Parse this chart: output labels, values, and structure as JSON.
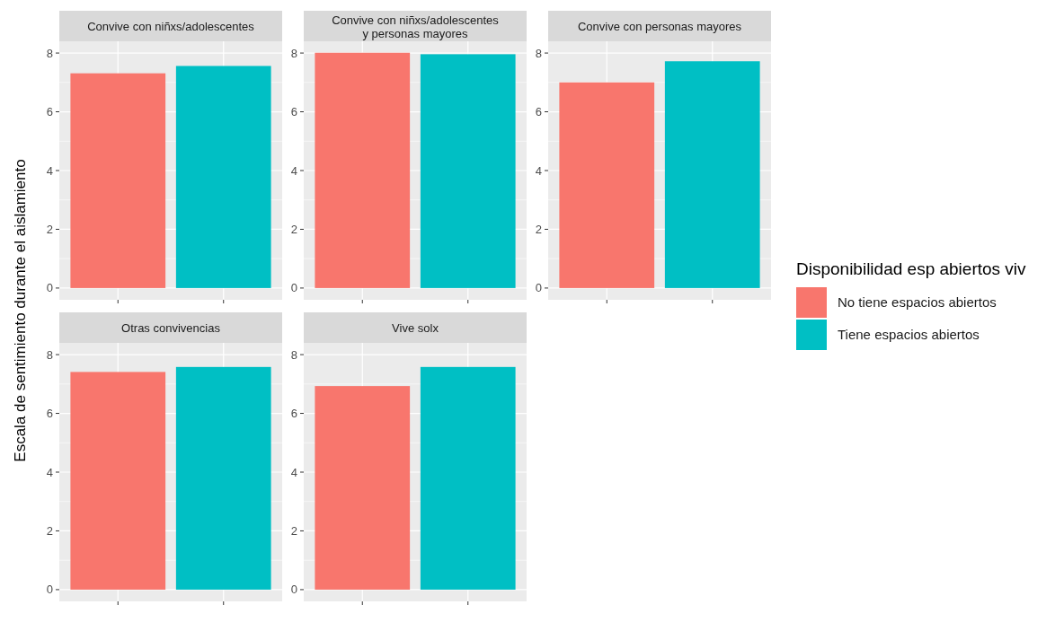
{
  "chart_data": [
    {
      "type": "bar",
      "title": "Convive con niñxs/adolescentes",
      "ylabel": "Escala de sentimiento durante el aislamiento",
      "legend_title": "Disponibilidad esp abiertos viv",
      "legend": "right",
      "categories": [
        null
      ],
      "ylim": [
        -0.4,
        8.4
      ],
      "yticks": [
        0,
        2,
        4,
        6,
        8
      ],
      "grid": true,
      "series": [
        {
          "name": "No tiene espacios abiertos",
          "color": "#f8766d",
          "values": [
            7.31
          ]
        },
        {
          "name": "Tiene espacios abiertos",
          "color": "#00bfc4",
          "values": [
            7.56
          ]
        }
      ]
    },
    {
      "type": "bar",
      "title": "Convive con niñxs/adolescentes y personas mayores",
      "categories": [
        null
      ],
      "ylim": [
        -0.4,
        8.4
      ],
      "yticks": [
        0,
        2,
        4,
        6,
        8
      ],
      "grid": true,
      "series": [
        {
          "color": "#f8766d",
          "values": [
            8.01
          ]
        },
        {
          "color": "#00bfc4",
          "values": [
            7.96
          ]
        }
      ]
    },
    {
      "type": "bar",
      "title": "Convive con personas mayores",
      "categories": [
        null
      ],
      "ylim": [
        -0.4,
        8.4
      ],
      "yticks": [
        0,
        2,
        4,
        6,
        8
      ],
      "grid": true,
      "series": [
        {
          "color": "#f8766d",
          "values": [
            7.0
          ]
        },
        {
          "color": "#00bfc4",
          "values": [
            7.72
          ]
        }
      ]
    },
    {
      "type": "bar",
      "title": "Otras convivencias",
      "categories": [
        null
      ],
      "ylim": [
        -0.4,
        8.4
      ],
      "yticks": [
        0,
        2,
        4,
        6,
        8
      ],
      "grid": true,
      "series": [
        {
          "color": "#f8766d",
          "values": [
            7.41
          ]
        },
        {
          "color": "#00bfc4",
          "values": [
            7.58
          ]
        }
      ]
    },
    {
      "type": "bar",
      "title": "Vive solx",
      "categories": [
        null
      ],
      "ylim": [
        -0.4,
        8.4
      ],
      "yticks": [
        0,
        2,
        4,
        6,
        8
      ],
      "grid": true,
      "series": [
        {
          "color": "#f8766d",
          "values": [
            6.93
          ]
        },
        {
          "color": "#00bfc4",
          "values": [
            7.58
          ]
        }
      ]
    }
  ]
}
